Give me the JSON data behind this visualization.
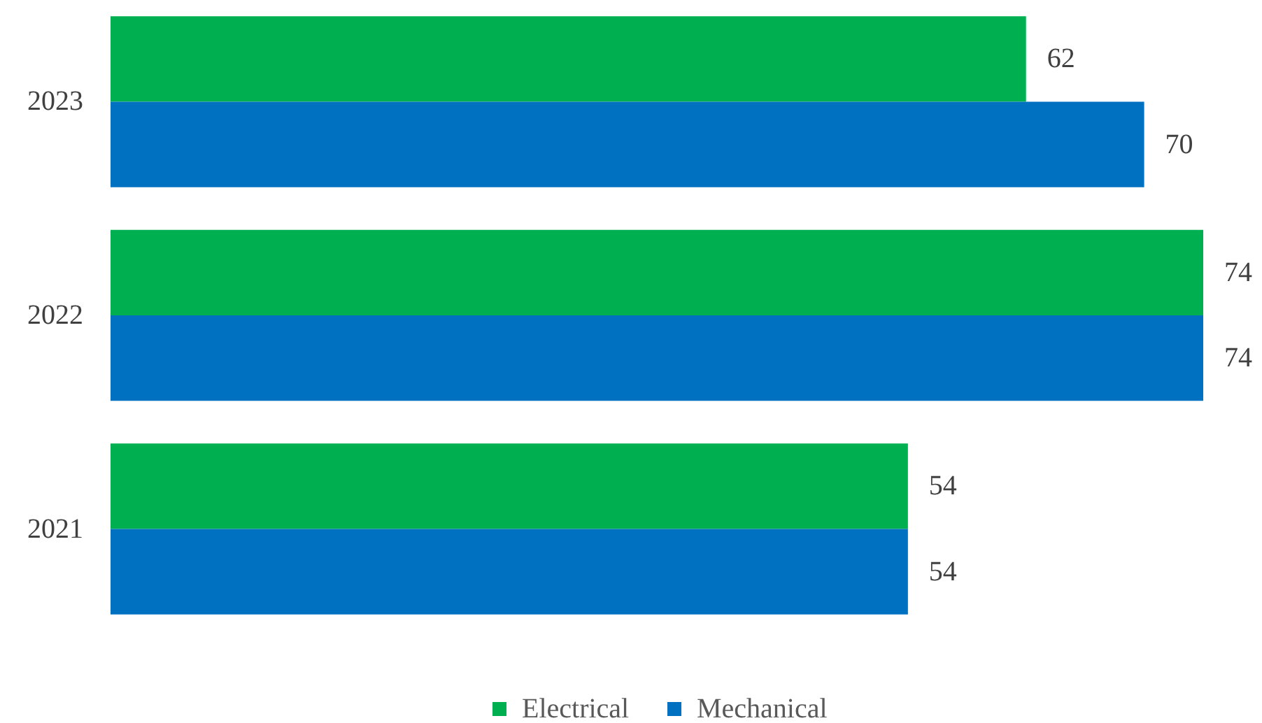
{
  "chart_data": {
    "type": "bar",
    "orientation": "horizontal",
    "categories": [
      "2023",
      "2022",
      "2021"
    ],
    "series": [
      {
        "name": "Electrical",
        "color": "#00b050",
        "values": [
          62,
          74,
          54
        ]
      },
      {
        "name": "Mechanical",
        "color": "#0070c0",
        "values": [
          70,
          74,
          54
        ]
      }
    ],
    "data_labels": true,
    "legend": "bottom",
    "tick_labels": "y"
  }
}
